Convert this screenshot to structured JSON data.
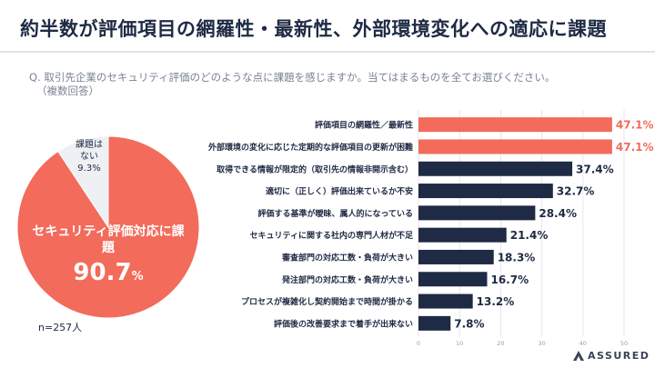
{
  "page": {
    "title": "約半数が評価項目の網羅性・最新性、外部環境変化への適応に課題",
    "question": "Q. 取引先企業のセキュリティ評価のどのような点に課題を感じますか。当てはまるものを全てお選びください。",
    "question_note": "（複数回答）",
    "sample_size": "n=257人",
    "brand": "ASSURED"
  },
  "colors": {
    "accent": "#f26b5b",
    "navy": "#1f2a44",
    "pie_other": "#eef0f4"
  },
  "chart_data": [
    {
      "type": "pie",
      "slices": [
        {
          "label": "セキュリティ評価対応に課題",
          "value": 90.7,
          "value_text": "90.7",
          "pct_sign": "%",
          "color": "#f26b5b"
        },
        {
          "label": "課題は\nない",
          "value": 9.3,
          "value_text": "9.3%",
          "color": "#eef0f4"
        }
      ]
    },
    {
      "type": "bar",
      "orientation": "horizontal",
      "categories": [
        "評価項目の網羅性／最新性",
        "外部環境の変化に応じた定期的な評価項目の更新が困難",
        "取得できる情報が限定的（取引先の情報非開示含む）",
        "適切に（正しく）評価出来ているか不安",
        "評価する基準が曖昧、属人的になっている",
        "セキュリティに関する社内の専門人材が不足",
        "審査部門の対応工数・負荷が大きい",
        "発注部門の対応工数・負荷が大きい",
        "プロセスが複雑化し契約開始まで時間が掛かる",
        "評価後の改善要求まで着手が出来ない"
      ],
      "values": [
        47.1,
        47.1,
        37.4,
        32.7,
        28.4,
        21.4,
        18.3,
        16.7,
        13.2,
        7.8
      ],
      "value_labels": [
        "47.1%",
        "47.1%",
        "37.4%",
        "32.7%",
        "28.4%",
        "21.4%",
        "18.3%",
        "16.7%",
        "13.2%",
        "7.8%"
      ],
      "highlight": [
        true,
        true,
        false,
        false,
        false,
        false,
        false,
        false,
        false,
        false
      ],
      "xlim": [
        0,
        50
      ],
      "xticks": [
        0,
        10,
        20,
        30,
        40,
        50
      ],
      "grid": true,
      "legend": "none"
    }
  ]
}
